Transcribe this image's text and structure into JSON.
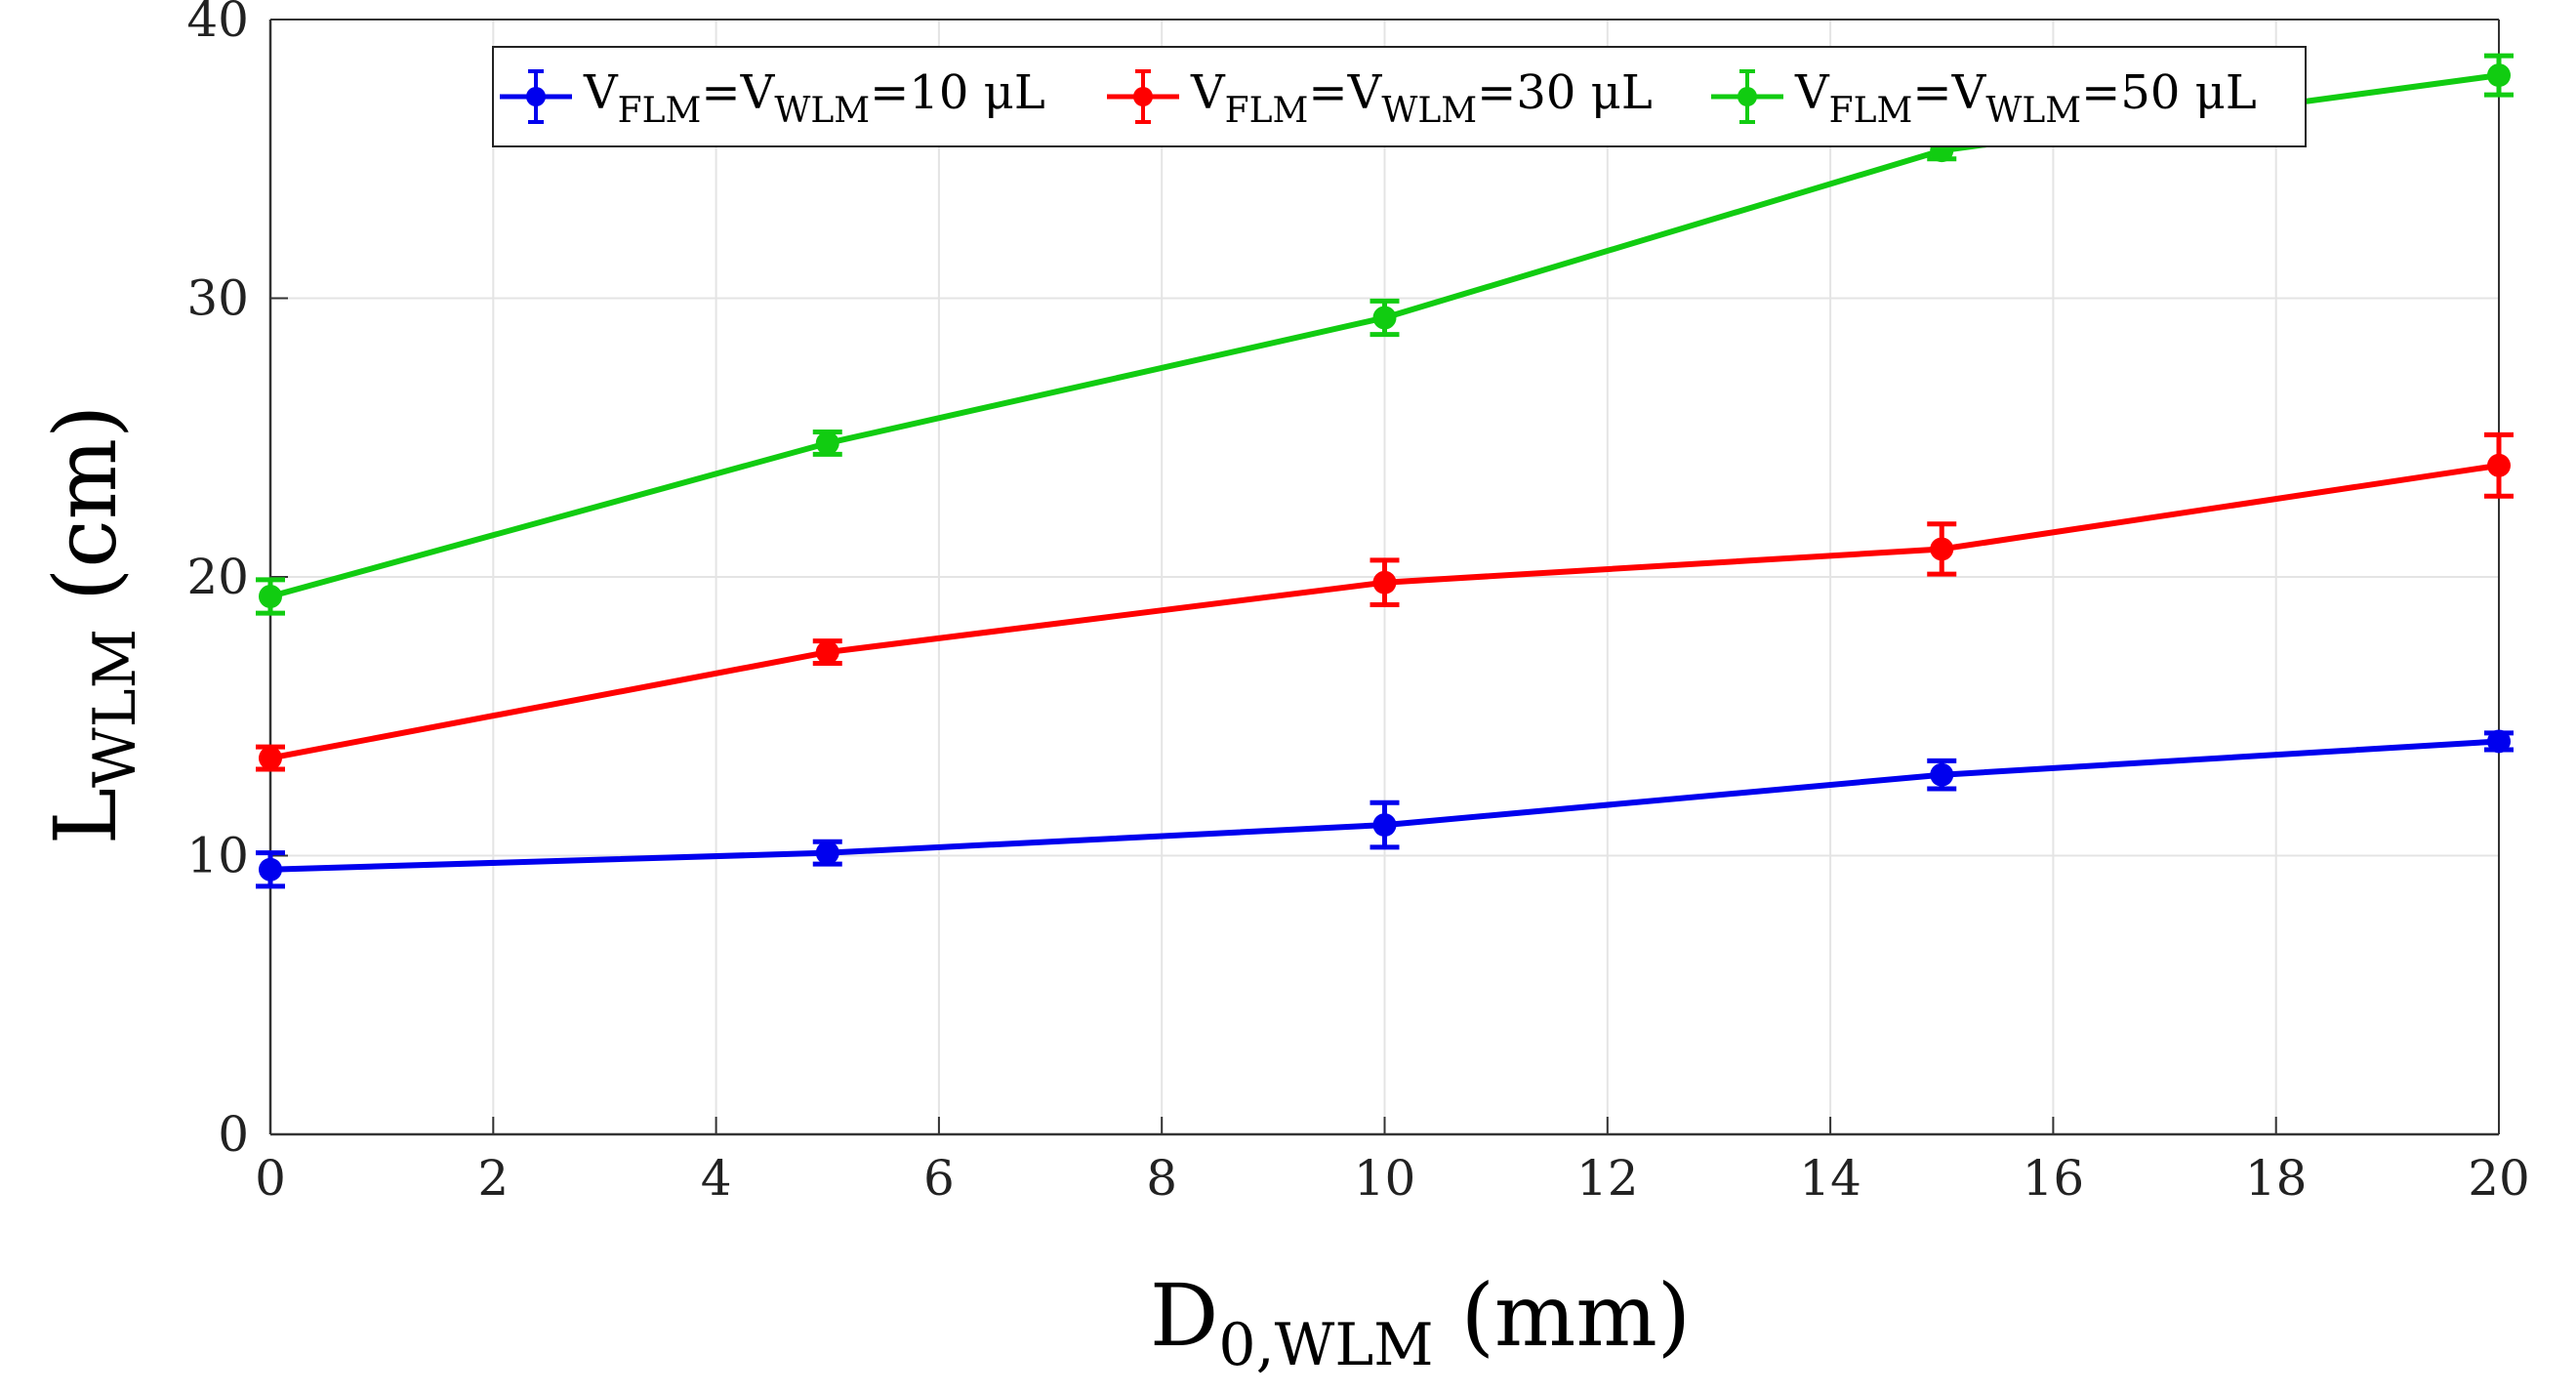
{
  "chart_data": {
    "type": "line",
    "x": [
      0,
      5,
      10,
      15,
      20
    ],
    "xlim": [
      0,
      20
    ],
    "ylim": [
      0,
      40
    ],
    "xticks": [
      0,
      2,
      4,
      6,
      8,
      10,
      12,
      14,
      16,
      18,
      20
    ],
    "yticks": [
      0,
      10,
      20,
      30,
      40
    ],
    "grid": true,
    "legend_position": "top",
    "xlabel": {
      "main": "D",
      "sub": "0,WLM",
      "unit": " (mm)"
    },
    "ylabel": {
      "main": "L",
      "sub": "WLM",
      "unit": " (cm)"
    },
    "series": [
      {
        "name": "VFLM=VWLM=10 μL",
        "label_parts": [
          "V",
          "FLM",
          "=V",
          "WLM",
          "=10 μL"
        ],
        "color": "#0000ee",
        "values": [
          9.5,
          10.1,
          11.1,
          12.9,
          14.1
        ],
        "errors": [
          0.6,
          0.4,
          0.8,
          0.5,
          0.3
        ]
      },
      {
        "name": "VFLM=VWLM=30 μL",
        "label_parts": [
          "V",
          "FLM",
          "=V",
          "WLM",
          "=30 μL"
        ],
        "color": "#ff0000",
        "values": [
          13.5,
          17.3,
          19.8,
          21.0,
          24.0
        ],
        "errors": [
          0.4,
          0.4,
          0.8,
          0.9,
          1.1
        ]
      },
      {
        "name": "VFLM=VWLM=50 μL",
        "label_parts": [
          "V",
          "FLM",
          "=V",
          "WLM",
          "=50 μL"
        ],
        "color": "#11cc11",
        "values": [
          19.3,
          24.8,
          29.3,
          35.3,
          38.0
        ],
        "errors": [
          0.6,
          0.4,
          0.6,
          0.3,
          0.7
        ]
      }
    ]
  }
}
